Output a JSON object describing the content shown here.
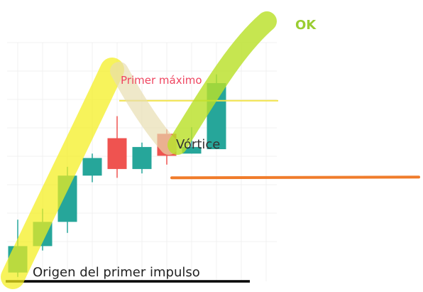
{
  "chart_data": {
    "type": "candlestick",
    "title": "",
    "xlabel": "",
    "ylabel": "",
    "grid": true,
    "ylim": [
      0,
      100
    ],
    "candles": [
      {
        "open": 4,
        "close": 16,
        "high": 28,
        "low": 2,
        "color": "teal"
      },
      {
        "open": 16,
        "close": 27,
        "high": 33,
        "low": 14,
        "color": "teal"
      },
      {
        "open": 27,
        "close": 48,
        "high": 52,
        "low": 22,
        "color": "teal"
      },
      {
        "open": 48,
        "close": 56,
        "high": 58,
        "low": 45,
        "color": "teal"
      },
      {
        "open": 65,
        "close": 51,
        "high": 75,
        "low": 47,
        "color": "red"
      },
      {
        "open": 51,
        "close": 61,
        "high": 63,
        "low": 49,
        "color": "teal"
      },
      {
        "open": 67,
        "close": 57,
        "high": 69,
        "low": 53,
        "color": "red"
      },
      {
        "open": 58,
        "close": 61,
        "high": 70,
        "low": 58,
        "color": "teal"
      },
      {
        "open": 60,
        "close": 90,
        "high": 94,
        "low": 60,
        "color": "teal"
      }
    ],
    "levels": [
      {
        "name": "primer_maximo",
        "value": 82,
        "color": "#f2e34a"
      },
      {
        "name": "vortice",
        "value": 47,
        "color": "#f07c2b"
      },
      {
        "name": "origen",
        "value": 0,
        "color": "#000000"
      }
    ],
    "annotations": {
      "ok": "OK",
      "primer_maximo": "Primer máximo",
      "vortice": "Vórtice",
      "origen": "Origen del primer impulso"
    }
  },
  "colors": {
    "teal": "#26a69a",
    "red": "#ef5350",
    "highlight_yellow": "#f4ee1c",
    "highlight_beige": "#e8ddb0",
    "highlight_green": "#b9e02a",
    "ok_green": "#9acd32",
    "max_label": "#ef4560"
  }
}
